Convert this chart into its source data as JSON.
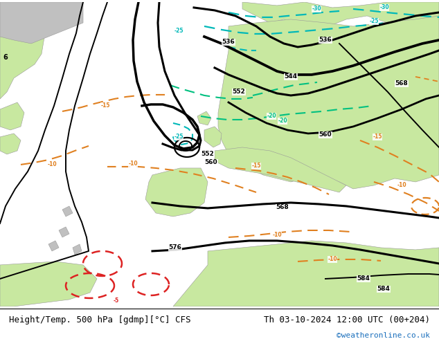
{
  "title_left": "Height/Temp. 500 hPa [gdmp][°C] CFS",
  "title_right": "Th 03-10-2024 12:00 UTC (00+204)",
  "credit": "©weatheronline.co.uk",
  "ocean_color": "#dcdcdc",
  "land_green_color": "#c8e8a0",
  "land_gray_color": "#c0c0c0",
  "bottom_bar_color": "#ffffff",
  "title_fontsize": 9,
  "credit_color": "#1a6fbc",
  "fig_width": 6.34,
  "fig_height": 4.9,
  "dpi": 100,
  "black_lw": 2.2,
  "thin_black_lw": 1.4
}
